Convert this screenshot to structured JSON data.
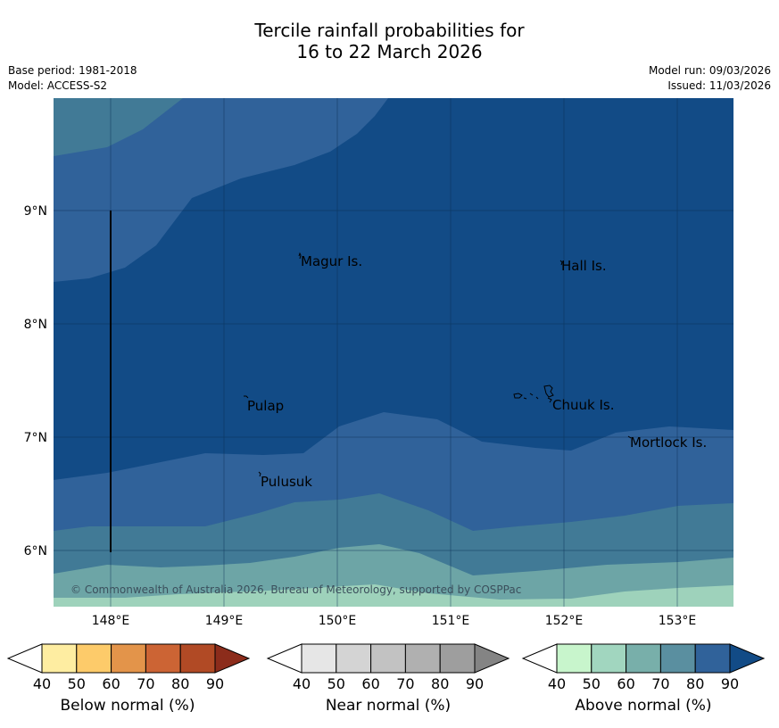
{
  "title": {
    "line1": "Tercile rainfall probabilities for",
    "line2": "16 to 22 March 2026"
  },
  "meta": {
    "base_period": "Base period: 1981-2018",
    "model": "Model: ACCESS-S2",
    "model_run": "Model run: 09/03/2026",
    "issued": "Issued: 11/03/2026"
  },
  "map": {
    "lon_labels": [
      "148°E",
      "149°E",
      "150°E",
      "151°E",
      "152°E",
      "153°E"
    ],
    "lat_labels": [
      "9°N",
      "8°N",
      "7°N",
      "6°N"
    ],
    "places": [
      "Magur Is.",
      "Hall Is.",
      "Pulap",
      "Chuuk Is.",
      "Mortlock Is.",
      "Pulusuk"
    ],
    "copyright": "© Commonwealth of Australia 2026, Bureau of Meteorology, supported by COSPPac"
  },
  "legend": {
    "below": {
      "label": "Below normal (%)",
      "ticks": [
        "40",
        "50",
        "60",
        "70",
        "80",
        "90"
      ],
      "colors": [
        "#ffffff",
        "#feeda1",
        "#fdcb6a",
        "#e3944a",
        "#cc6434",
        "#b14a25",
        "#8c2c1b"
      ]
    },
    "near": {
      "label": "Near normal (%)",
      "ticks": [
        "40",
        "50",
        "60",
        "70",
        "80",
        "90"
      ],
      "colors": [
        "#ffffff",
        "#e6e6e6",
        "#d4d4d4",
        "#c2c2c2",
        "#b0b0b0",
        "#9e9e9e",
        "#848484"
      ]
    },
    "above": {
      "label": "Above normal (%)",
      "ticks": [
        "40",
        "50",
        "60",
        "70",
        "80",
        "90"
      ],
      "colors": [
        "#ffffff",
        "#c8f5cc",
        "#a1d6bf",
        "#78afaa",
        "#5a8fa0",
        "#30629a",
        "#124b86"
      ]
    }
  },
  "colors": {
    "band_90": "#124b86",
    "band_80": "#30629a",
    "band_70": "#417a96",
    "band_60": "#6da5a6",
    "band_50": "#9ed2bb"
  }
}
